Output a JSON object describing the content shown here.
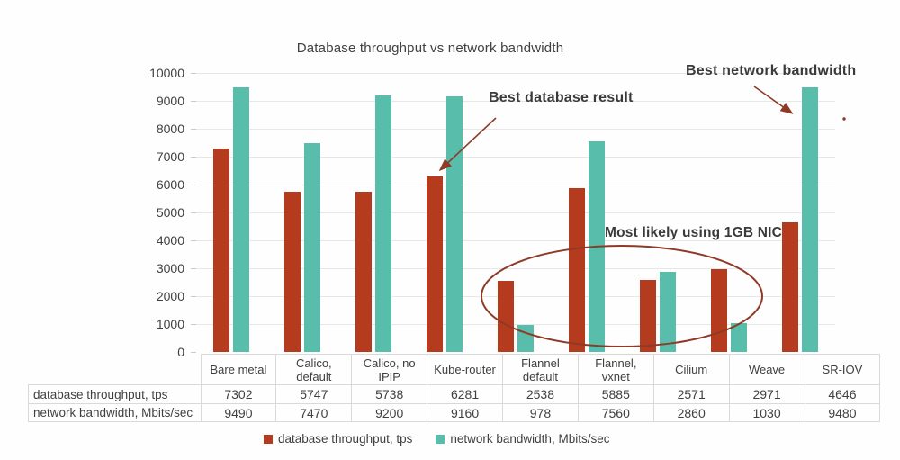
{
  "colors": {
    "db": "#b43b1e",
    "nw": "#58bdab",
    "annotation": "#8e3a26",
    "text": "#404040",
    "grid": "#e7e7e7",
    "table_border": "#d9d9d9"
  },
  "chart_data": {
    "type": "bar",
    "title": "Database throughput vs network bandwidth",
    "categories": [
      "Bare metal",
      "Calico, default",
      "Calico, no IPIP",
      "Kube-router",
      "Flannel default",
      "Flannel, vxnet",
      "Cilium",
      "Weave",
      "SR-IOV"
    ],
    "series": [
      {
        "name": "database throughput, tps",
        "color": "#b43b1e",
        "values": [
          7302,
          5747,
          5738,
          6281,
          2538,
          5885,
          2571,
          2971,
          4646
        ]
      },
      {
        "name": "network bandwidth, Mbits/sec",
        "color": "#58bdab",
        "values": [
          9490,
          7470,
          9200,
          9160,
          978,
          7560,
          2860,
          1030,
          9480
        ]
      }
    ],
    "ylim": [
      0,
      10000
    ],
    "yticks": [
      0,
      1000,
      2000,
      3000,
      4000,
      5000,
      6000,
      7000,
      8000,
      9000,
      10000
    ],
    "grid": true,
    "legend_position": "bottom",
    "data_table_shown": true
  },
  "annotations": {
    "best_db": "Best database result",
    "best_nw": "Best network bandwidth",
    "nic": "Most likely using 1GB NIC"
  },
  "legend": {
    "items": [
      {
        "label": "database throughput, tps",
        "color": "#b43b1e"
      },
      {
        "label": "network bandwidth, Mbits/sec",
        "color": "#58bdab"
      }
    ]
  }
}
